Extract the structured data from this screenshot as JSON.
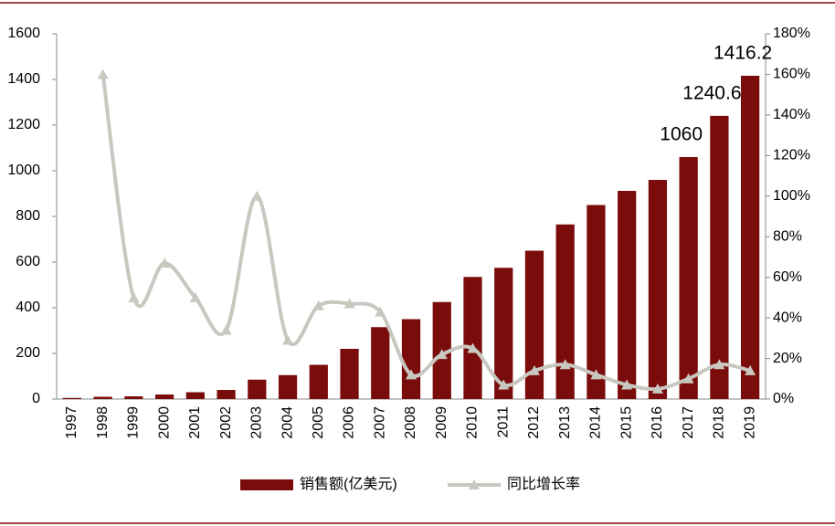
{
  "chart_data": {
    "type": "bar_line",
    "categories": [
      "1997",
      "1998",
      "1999",
      "2000",
      "2001",
      "2002",
      "2003",
      "2004",
      "2005",
      "2006",
      "2007",
      "2008",
      "2009",
      "2010",
      "2011",
      "2012",
      "2013",
      "2014",
      "2015",
      "2016",
      "2017",
      "2018",
      "2019"
    ],
    "series": [
      {
        "name": "销售额(亿美元)",
        "type": "bar",
        "color": "#7b0c0c",
        "values": [
          5,
          10,
          12,
          20,
          30,
          40,
          85,
          105,
          150,
          220,
          315,
          350,
          425,
          535,
          575,
          650,
          765,
          850,
          912,
          960,
          1060,
          1240.6,
          1416.2
        ],
        "value_labels": [
          null,
          null,
          null,
          null,
          null,
          null,
          null,
          null,
          null,
          null,
          null,
          null,
          null,
          null,
          null,
          null,
          null,
          null,
          null,
          null,
          "1060",
          "1240.6",
          "1416.2"
        ]
      },
      {
        "name": "同比增长率",
        "type": "line",
        "axis": "y2",
        "color": "#c8c8c0",
        "values": [
          null,
          160,
          50,
          67,
          50,
          34,
          100,
          29,
          46,
          47,
          43,
          12,
          22,
          25,
          7,
          14,
          17,
          12,
          7,
          5,
          10,
          17,
          14
        ]
      }
    ],
    "ylim": [
      0,
      1600
    ],
    "yticks": [
      0,
      200,
      400,
      600,
      800,
      1000,
      1200,
      1400,
      1600
    ],
    "y2lim": [
      0,
      180
    ],
    "y2ticks": [
      {
        "value": 0,
        "label": "0%"
      },
      {
        "value": 20,
        "label": "20%"
      },
      {
        "value": 40,
        "label": "40%"
      },
      {
        "value": 60,
        "label": "60%"
      },
      {
        "value": 80,
        "label": "80%"
      },
      {
        "value": 100,
        "label": "100%"
      },
      {
        "value": 120,
        "label": "120%"
      },
      {
        "value": 140,
        "label": "140%"
      },
      {
        "value": 160,
        "label": "160%"
      },
      {
        "value": 180,
        "label": "180%"
      }
    ],
    "legend": "bottom",
    "grid": false
  }
}
